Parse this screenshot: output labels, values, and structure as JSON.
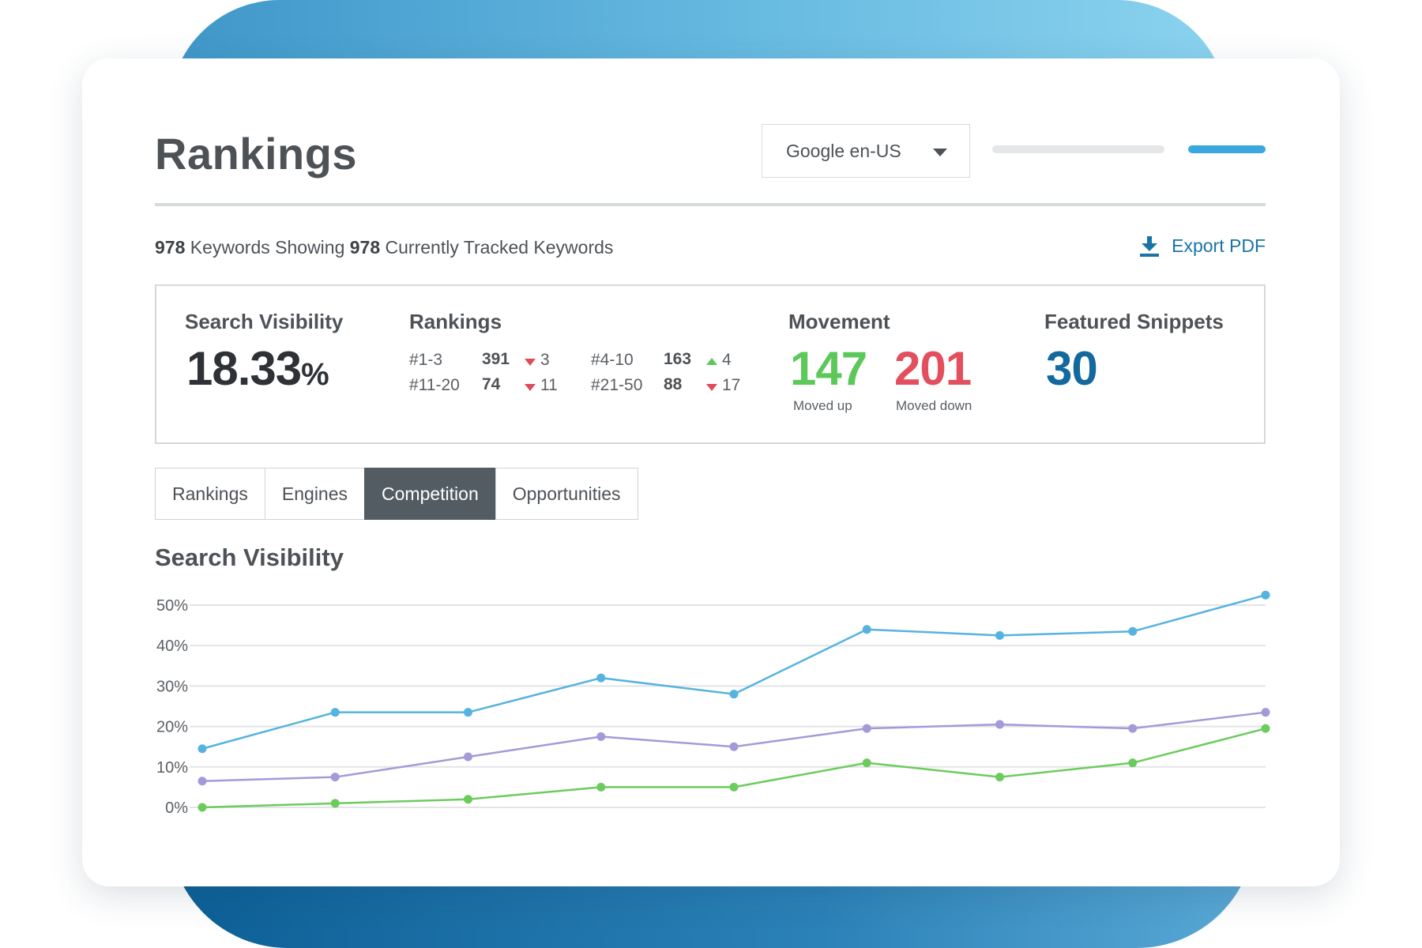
{
  "header": {
    "title": "Rankings",
    "engine_select": "Google en-US"
  },
  "summary": {
    "keywords_count": "978",
    "keywords_showing_text": " Keywords Showing ",
    "tracked_count": "978",
    "tracked_text": " Currently Tracked Keywords",
    "export_label": "Export PDF"
  },
  "stats": {
    "search_visibility": {
      "label": "Search Visibility",
      "value": "18.33",
      "unit": "%"
    },
    "rankings": {
      "label": "Rankings",
      "rows": [
        {
          "range": "#1-3",
          "count": "391",
          "direction": "down",
          "delta": "3"
        },
        {
          "range": "#4-10",
          "count": "163",
          "direction": "up",
          "delta": "4"
        },
        {
          "range": "#11-20",
          "count": "74",
          "direction": "down",
          "delta": "11"
        },
        {
          "range": "#21-50",
          "count": "88",
          "direction": "down",
          "delta": "17"
        }
      ]
    },
    "movement": {
      "label": "Movement",
      "up_value": "147",
      "up_label": "Moved up",
      "down_value": "201",
      "down_label": "Moved down",
      "up_color": "#5cc85a",
      "down_color": "#e34f5e"
    },
    "featured_snippets": {
      "label": "Featured Snippets",
      "value": "30",
      "color": "#13699e"
    }
  },
  "tabs": [
    {
      "label": "Rankings",
      "active": false
    },
    {
      "label": "Engines",
      "active": false
    },
    {
      "label": "Competition",
      "active": true
    },
    {
      "label": "Opportunities",
      "active": false
    }
  ],
  "chart_title": "Search Visibility",
  "chart_data": {
    "type": "line",
    "title": "Search Visibility",
    "xlabel": "",
    "ylabel": "",
    "y_ticks": [
      "50%",
      "40%",
      "30%",
      "20%",
      "10%",
      "0%"
    ],
    "ylim": [
      0,
      50
    ],
    "grid": true,
    "x": [
      1,
      2,
      3,
      4,
      5,
      6,
      7,
      8,
      9
    ],
    "series": [
      {
        "color": "#55b3df",
        "values": [
          14.5,
          23.5,
          23.5,
          32,
          28,
          44,
          42.5,
          43.5,
          52.5
        ]
      },
      {
        "color": "#a39ad8",
        "values": [
          6.5,
          7.5,
          12.5,
          17.5,
          15,
          19.5,
          20.5,
          19.5,
          23.5
        ]
      },
      {
        "color": "#6ccb5d",
        "values": [
          0,
          1,
          2,
          5,
          5,
          11,
          7.5,
          11,
          19.5
        ]
      }
    ]
  }
}
